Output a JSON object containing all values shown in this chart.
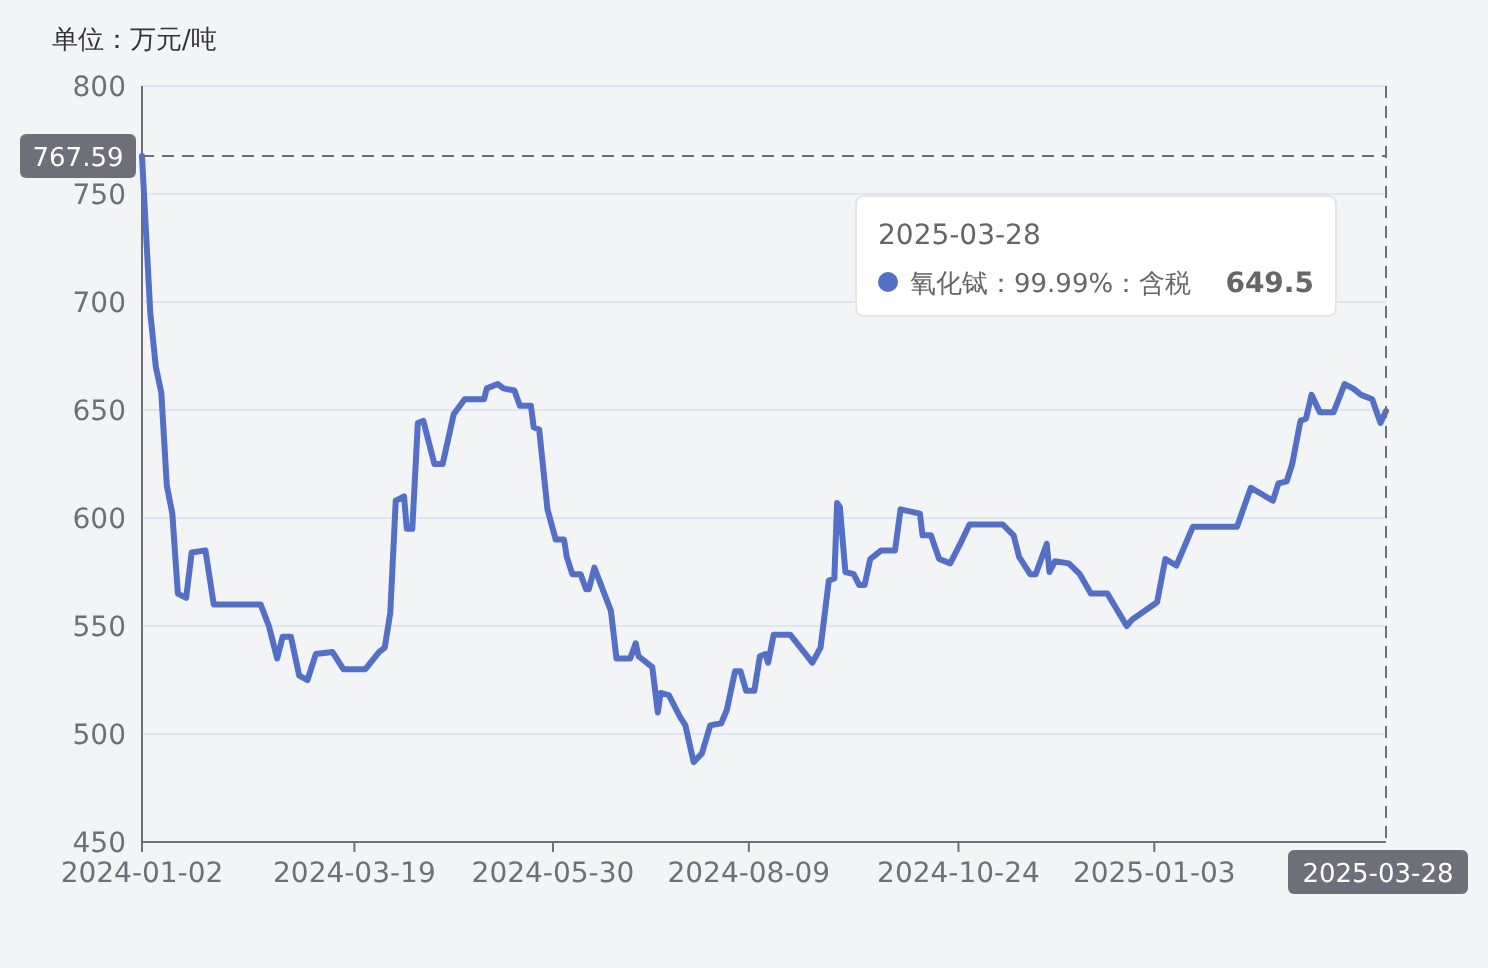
{
  "chart_data": {
    "type": "line",
    "ylabel": "单位：万元/吨",
    "xlim": [
      "2024-01-02",
      "2025-03-28"
    ],
    "xticks": [
      "2024-01-02",
      "2024-03-19",
      "2024-05-30",
      "2024-08-09",
      "2024-10-24",
      "2025-01-03"
    ],
    "ylim": [
      450,
      800
    ],
    "yticks": [
      450,
      500,
      550,
      600,
      650,
      700,
      750,
      800
    ],
    "grid": "y",
    "legend": "top right",
    "ref_lines": [
      {
        "axis": "y",
        "value": 767.59,
        "label": "767.59",
        "color": "#6e7079",
        "line_style": "dashed"
      },
      {
        "axis": "x",
        "value": "2025-03-28",
        "label": "2025-03-28",
        "color": "#6e7079",
        "line_style": "dashed"
      }
    ],
    "annotations": [
      "2025-03-28",
      "649.5"
    ],
    "series": [
      {
        "name": "氧化铽：99.99%：含税",
        "color": "#5470c6",
        "x": [
          "2024-01-02",
          "2024-01-05",
          "2024-01-07",
          "2024-01-09",
          "2024-01-11",
          "2024-01-13",
          "2024-01-15",
          "2024-01-18",
          "2024-01-20",
          "2024-01-25",
          "2024-01-28",
          "2024-02-14",
          "2024-02-17",
          "2024-02-20",
          "2024-02-22",
          "2024-02-25",
          "2024-02-28",
          "2024-03-02",
          "2024-03-05",
          "2024-03-11",
          "2024-03-15",
          "2024-03-23",
          "2024-03-28",
          "2024-03-30",
          "2024-04-01",
          "2024-04-03",
          "2024-04-06",
          "2024-04-07",
          "2024-04-09",
          "2024-04-11",
          "2024-04-13",
          "2024-04-15",
          "2024-04-17",
          "2024-04-20",
          "2024-04-24",
          "2024-04-28",
          "2024-05-05",
          "2024-05-06",
          "2024-05-10",
          "2024-05-12",
          "2024-05-16",
          "2024-05-18",
          "2024-05-22",
          "2024-05-23",
          "2024-05-25",
          "2024-05-28",
          "2024-05-31",
          "2024-06-03",
          "2024-06-04",
          "2024-06-06",
          "2024-06-09",
          "2024-06-11",
          "2024-06-12",
          "2024-06-14",
          "2024-06-20",
          "2024-06-22",
          "2024-06-27",
          "2024-06-29",
          "2024-06-30",
          "2024-07-05",
          "2024-07-07",
          "2024-07-08",
          "2024-07-11",
          "2024-07-15",
          "2024-07-17",
          "2024-07-20",
          "2024-07-23",
          "2024-07-26",
          "2024-07-30",
          "2024-08-01",
          "2024-08-04",
          "2024-08-06",
          "2024-08-08",
          "2024-08-11",
          "2024-08-13",
          "2024-08-15",
          "2024-08-16",
          "2024-08-18",
          "2024-08-24",
          "2024-09-01",
          "2024-09-04",
          "2024-09-07",
          "2024-09-09",
          "2024-09-10",
          "2024-09-11",
          "2024-09-13",
          "2024-09-16",
          "2024-09-18",
          "2024-09-20",
          "2024-09-22",
          "2024-09-26",
          "2024-10-01",
          "2024-10-03",
          "2024-10-10",
          "2024-10-11",
          "2024-10-14",
          "2024-10-17",
          "2024-10-21",
          "2024-10-23",
          "2024-10-25",
          "2024-10-28",
          "2024-11-09",
          "2024-11-13",
          "2024-11-15",
          "2024-11-19",
          "2024-11-21",
          "2024-11-25",
          "2024-11-26",
          "2024-11-28",
          "2024-12-03",
          "2024-12-07",
          "2024-12-11",
          "2024-12-17",
          "2024-12-24",
          "2024-12-26",
          "2025-01-04",
          "2025-01-07",
          "2025-01-11",
          "2025-01-17",
          "2025-02-02",
          "2025-02-07",
          "2025-02-15",
          "2025-02-17",
          "2025-02-20",
          "2025-02-22",
          "2025-02-25",
          "2025-02-27",
          "2025-03-01",
          "2025-03-04",
          "2025-03-09",
          "2025-03-13",
          "2025-03-16",
          "2025-03-19",
          "2025-03-23",
          "2025-03-26",
          "2025-03-28"
        ],
        "values": [
          767.59,
          695,
          670,
          658,
          615,
          602,
          565,
          563,
          584,
          585,
          560,
          560,
          550,
          535,
          545,
          545,
          527,
          525,
          537,
          538,
          530,
          530,
          538,
          540,
          556,
          608,
          610,
          595,
          595,
          644,
          645,
          635,
          625,
          625,
          648,
          655,
          655,
          660,
          662,
          660,
          659,
          652,
          652,
          642,
          641,
          604,
          590,
          590,
          582,
          574,
          574,
          567,
          567,
          577,
          557,
          535,
          535,
          542,
          536,
          531,
          510,
          519,
          518,
          508,
          504,
          487,
          491,
          504,
          505,
          511,
          529,
          529,
          520,
          520,
          536,
          537,
          533,
          546,
          546,
          533,
          540,
          571,
          572,
          607,
          605,
          575,
          574,
          569,
          569,
          581,
          585,
          585,
          604,
          602,
          592,
          592,
          581,
          579,
          584,
          589,
          597,
          597,
          592,
          582,
          574,
          574,
          588,
          575,
          580,
          579,
          574,
          565,
          565,
          550,
          553,
          561,
          581,
          578,
          596,
          596,
          614,
          608,
          616,
          617,
          625,
          645,
          646,
          657,
          649,
          649,
          662,
          660,
          657,
          655,
          644,
          649.5
        ]
      }
    ]
  }
}
